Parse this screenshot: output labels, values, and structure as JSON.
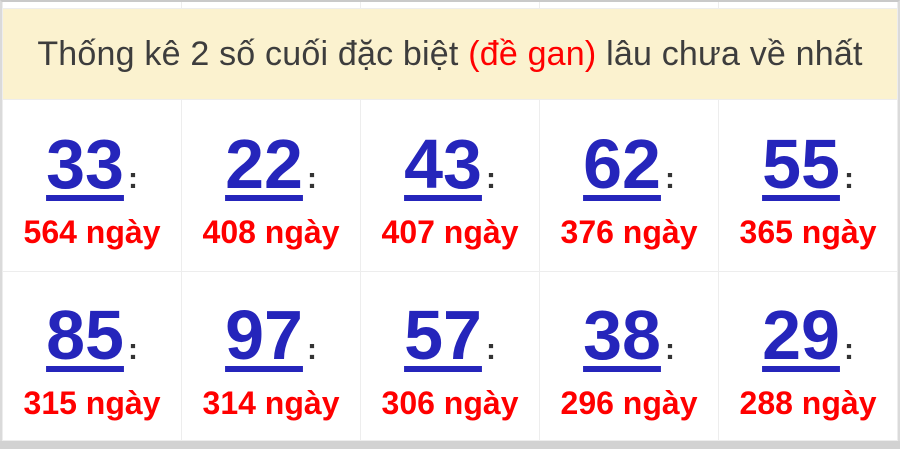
{
  "header": {
    "title_prefix": "Thống kê 2 số cuối đặc biệt ",
    "title_highlight": "(đề gan)",
    "title_suffix": " lâu chưa về nhất"
  },
  "stats": {
    "colon": ":",
    "rows": [
      {
        "cells": [
          {
            "number": "33",
            "days": "564 ngày"
          },
          {
            "number": "22",
            "days": "408 ngày"
          },
          {
            "number": "43",
            "days": "407 ngày"
          },
          {
            "number": "62",
            "days": "376 ngày"
          },
          {
            "number": "55",
            "days": "365 ngày"
          }
        ]
      },
      {
        "cells": [
          {
            "number": "85",
            "days": "315 ngày"
          },
          {
            "number": "97",
            "days": "314 ngày"
          },
          {
            "number": "57",
            "days": "306 ngày"
          },
          {
            "number": "38",
            "days": "296 ngày"
          },
          {
            "number": "29",
            "days": "288 ngày"
          }
        ]
      }
    ]
  },
  "colors": {
    "header_bg": "#fbf2cf",
    "header_text": "#3d3d3d",
    "highlight_red": "#ff0000",
    "number_blue": "#2525bb",
    "days_red": "#ff0000",
    "inner_border": "#ededed",
    "outer_border": "#c9c9c9",
    "bottom_strip": "#d2d2d2"
  }
}
